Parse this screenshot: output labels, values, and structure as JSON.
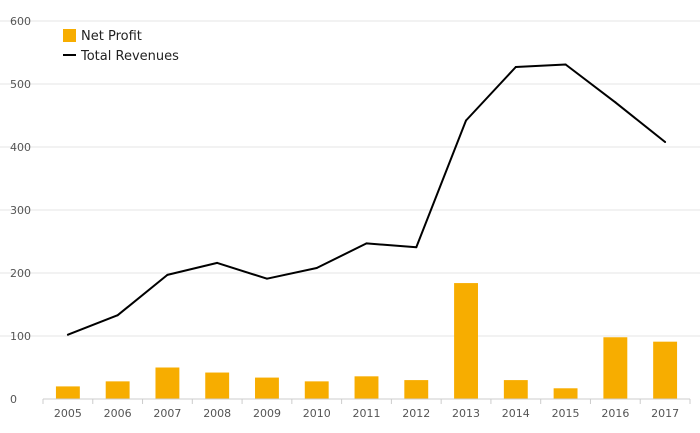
{
  "chart_data": {
    "type": "bar",
    "categories": [
      "2005",
      "2006",
      "2007",
      "2008",
      "2009",
      "2010",
      "2011",
      "2012",
      "2013",
      "2014",
      "2015",
      "2016",
      "2017"
    ],
    "series": [
      {
        "name": "Net Profit",
        "type": "bar",
        "color": "#F7AD00",
        "values": [
          20,
          28,
          50,
          42,
          34,
          28,
          36,
          30,
          184,
          30,
          17,
          98,
          91
        ]
      },
      {
        "name": "Total Revenues",
        "type": "line",
        "color": "#000000",
        "values": [
          102,
          133,
          197,
          216,
          191,
          208,
          247,
          241,
          442,
          527,
          531,
          471,
          408
        ]
      }
    ],
    "yticks": [
      "0",
      "100",
      "200",
      "300",
      "400",
      "500",
      "600"
    ],
    "ylim": [
      0,
      600
    ],
    "title": "",
    "xlabel": "",
    "ylabel": "",
    "grid": true,
    "legend_position": "top-left"
  }
}
